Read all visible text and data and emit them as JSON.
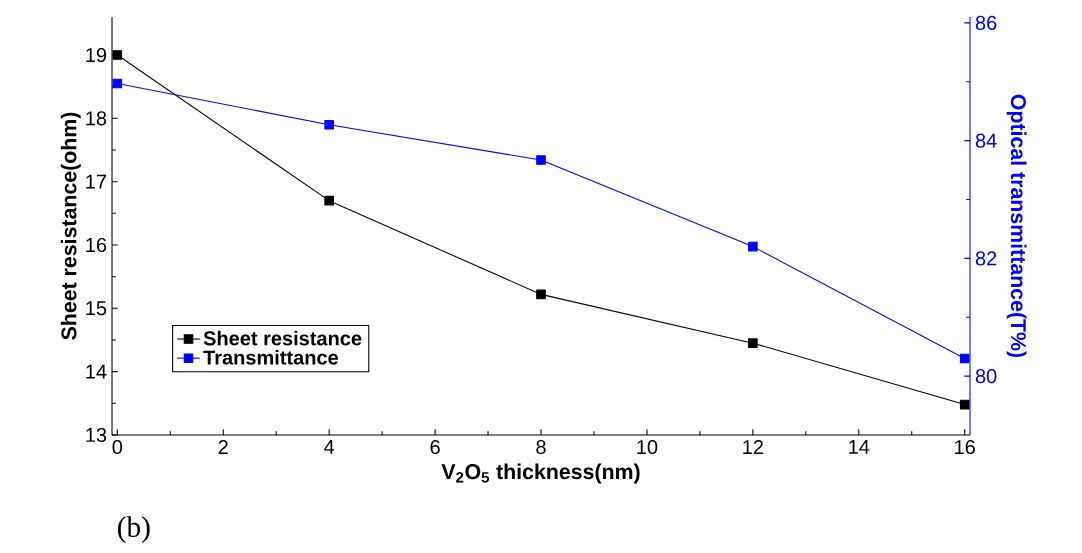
{
  "chart_data": {
    "type": "line",
    "xlabel": "V$_{2}$O$_{5}$ thickness(nm)",
    "ylabel": "Sheet resistance(ohm)",
    "y2label": "Optical transmittance(T%)",
    "x": [
      0,
      4,
      8,
      12,
      16
    ],
    "series": [
      {
        "name": "Sheet resistance",
        "color": "#000000",
        "values": [
          19.0,
          16.7,
          15.22,
          14.45,
          13.48
        ]
      },
      {
        "name": "Transmittance",
        "color": "#0000ff",
        "axis": "y2",
        "values": [
          84.97,
          84.27,
          83.67,
          82.2,
          80.3
        ]
      }
    ],
    "xlim": [
      -0.1,
      16.1
    ],
    "xticks": [
      0,
      2,
      4,
      6,
      8,
      10,
      12,
      14,
      16
    ],
    "ylim": [
      13,
      19.6
    ],
    "yticks": [
      13,
      14,
      15,
      16,
      17,
      18,
      19
    ],
    "y2lim": [
      79,
      86.1
    ],
    "y2ticks": [
      80,
      82,
      84,
      86
    ],
    "marker": "square",
    "line_style": "solid",
    "legend": "bottom left",
    "grid": false,
    "annotations": [
      "(b)"
    ]
  }
}
